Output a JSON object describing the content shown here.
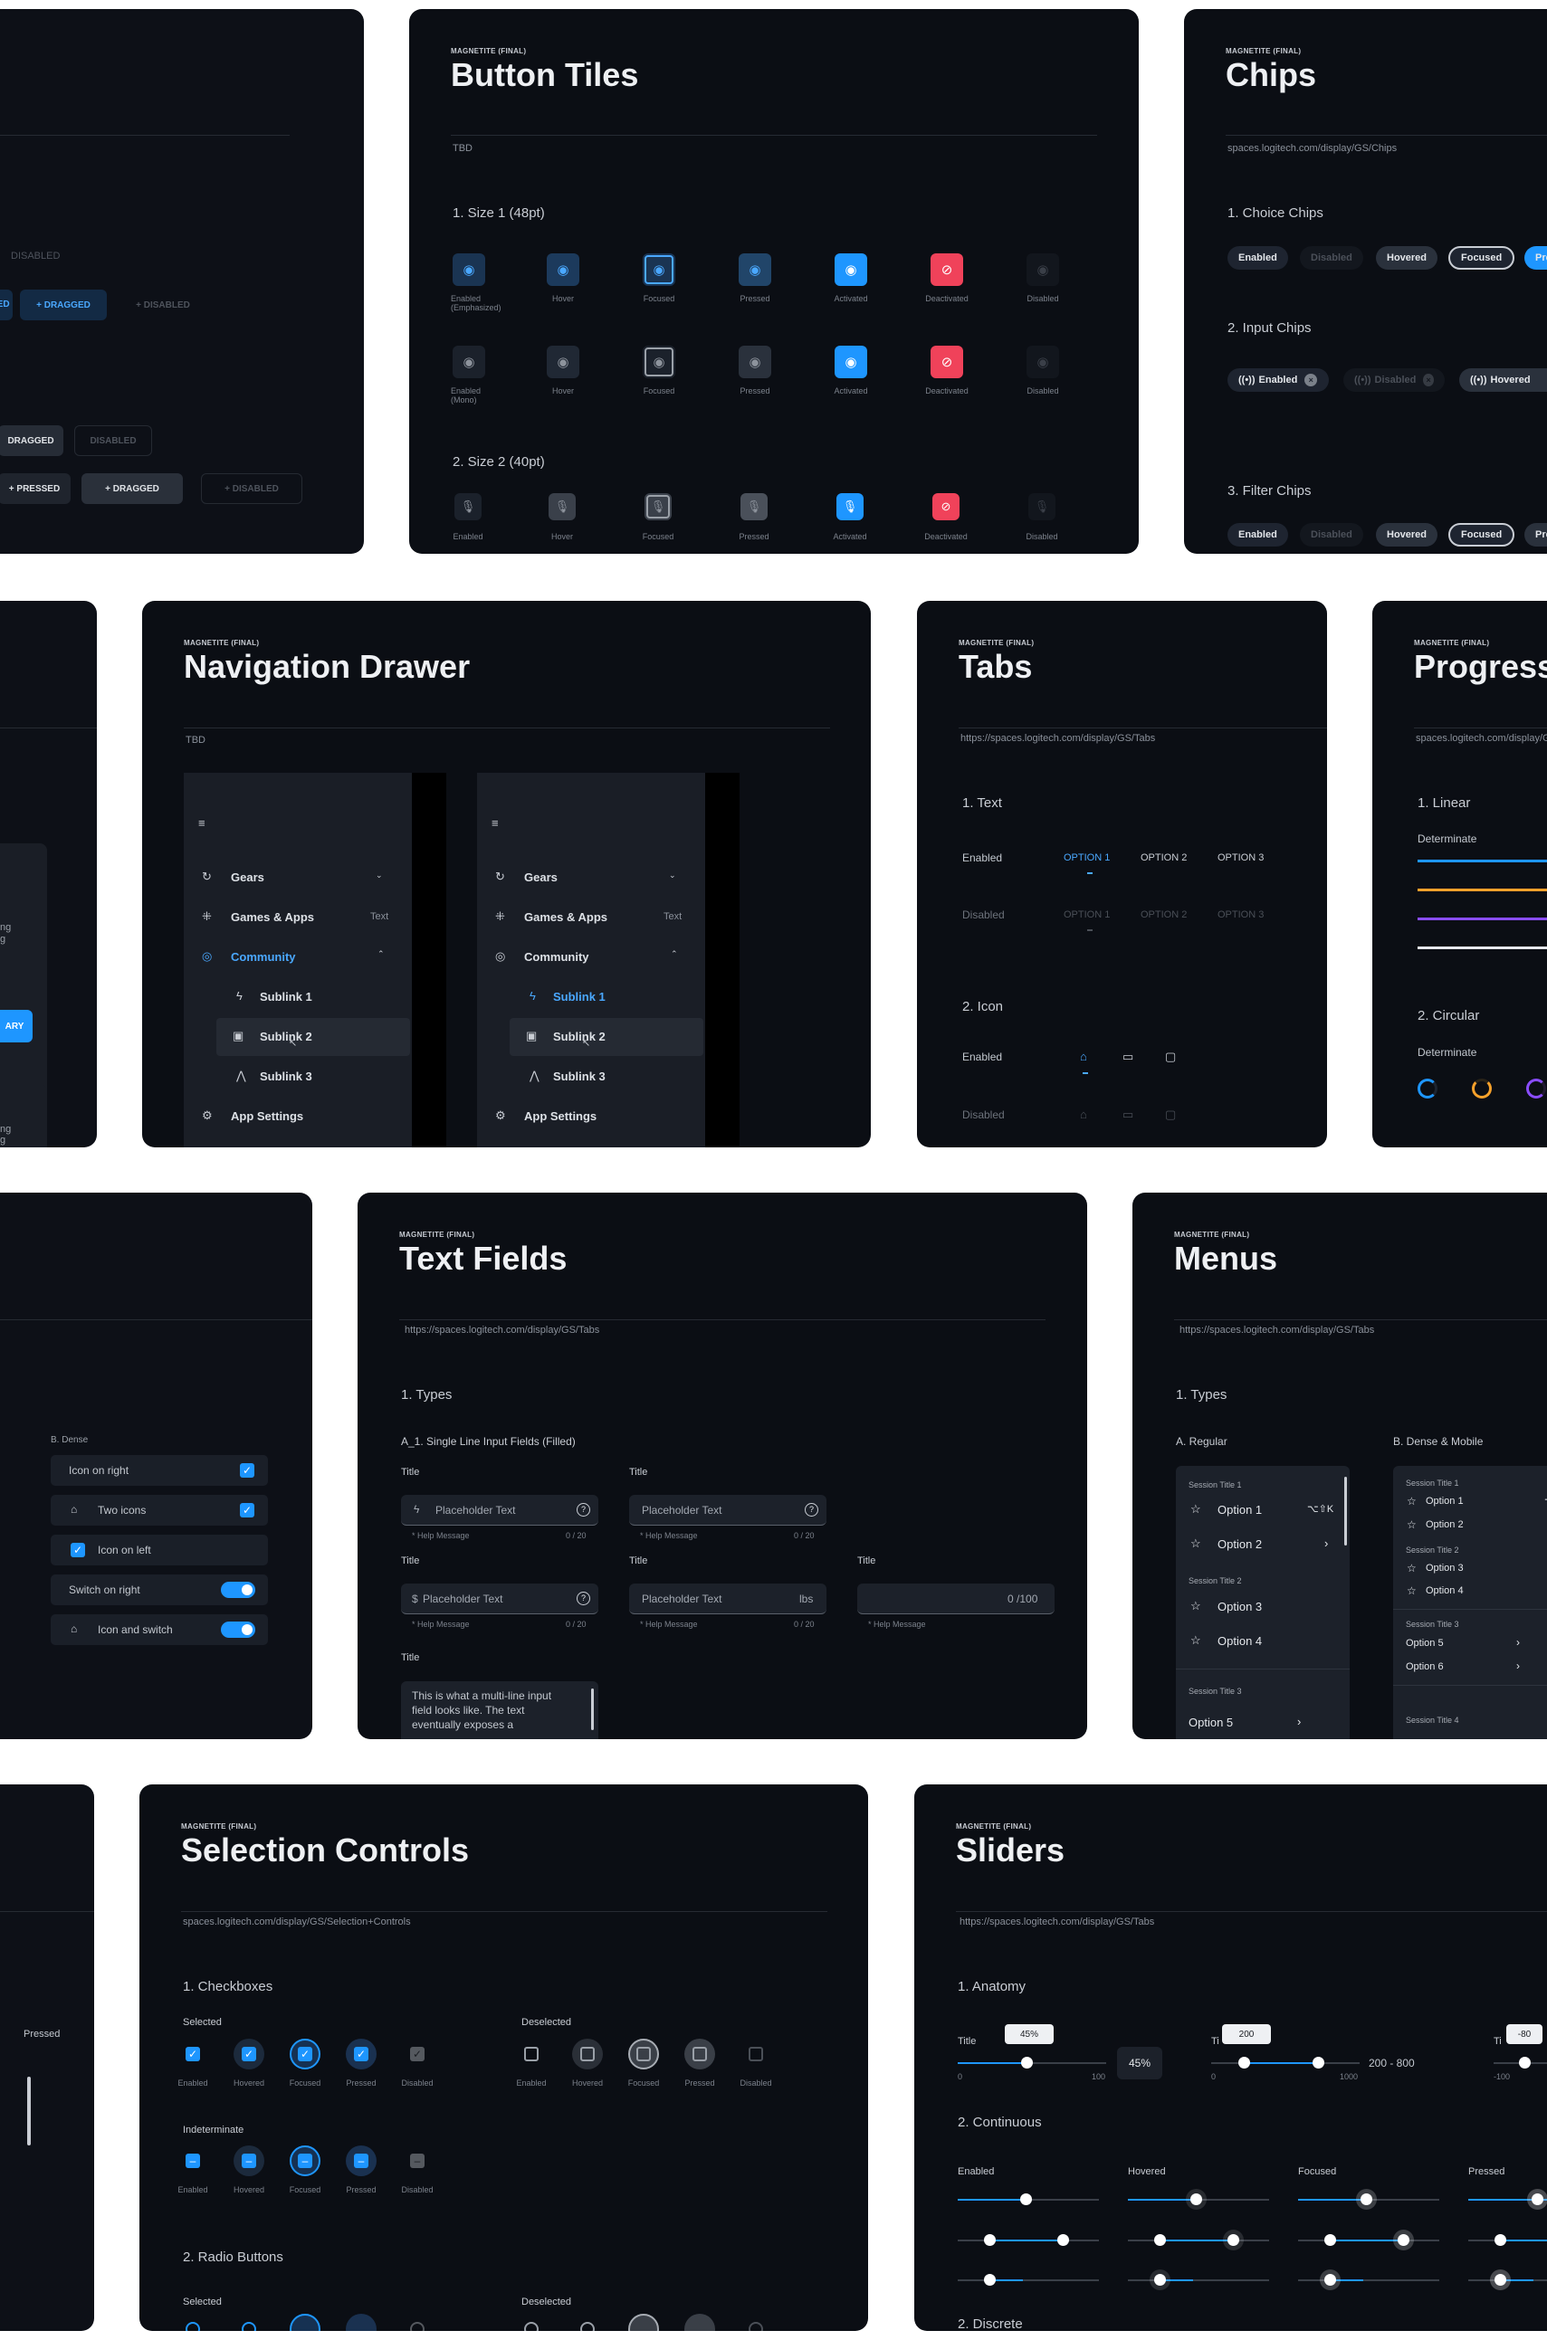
{
  "overline": "MAGNETITE (FINAL)",
  "c1": {
    "disabled": "DISABLED",
    "dragged1": "+ DRAGGED",
    "disabled2": "+ DISABLED",
    "sed": "SED",
    "dragged": "DRAGGED",
    "disabled3": "DISABLED",
    "pressed": "+ PRESSED",
    "dragged2": "+ DRAGGED",
    "disabled4": "+ DISABLED"
  },
  "btn": {
    "title": "Button Tiles",
    "subtitle": "TBD",
    "size1": "1. Size 1 (48pt)",
    "size2": "2. Size 2 (40pt)",
    "row1": [
      "Enabled (Emphasized)",
      "Hover",
      "Focused",
      "Pressed",
      "Activated",
      "Deactivated",
      "Disabled"
    ],
    "row2": [
      "Enabled (Mono)",
      "Hover",
      "Focused",
      "Pressed",
      "Activated",
      "Deactivated",
      "Disabled"
    ],
    "row3": [
      "Enabled",
      "Hover",
      "Focused",
      "Pressed",
      "Activated",
      "Deactivated",
      "Disabled"
    ]
  },
  "chips": {
    "title": "Chips",
    "subtitle": "spaces.logitech.com/display/GS/Chips",
    "choice": "1. Choice Chips",
    "input": "2. Input Chips",
    "filter": "3. Filter Chips",
    "choice_items": [
      "Enabled",
      "Disabled",
      "Hovered",
      "Focused",
      "Pre"
    ],
    "input_items": [
      "Enabled",
      "Disabled",
      "Hovered"
    ],
    "filter_items": [
      "Enabled",
      "Disabled",
      "Hovered",
      "Focused",
      "Pre"
    ]
  },
  "c4": {
    "ng": "ng",
    "g": "g",
    "ary": "ARY",
    "ng2": "ng",
    "gg": "g"
  },
  "nav": {
    "title": "Navigation Drawer",
    "subtitle": "TBD",
    "items": [
      "Gears",
      "Games & Apps",
      "Community",
      "Sublink 1",
      "Sublink 2",
      "Sublink 3",
      "App Settings"
    ],
    "text_label": "Text"
  },
  "tabs": {
    "title": "Tabs",
    "subtitle": "https://spaces.logitech.com/display/GS/Tabs",
    "text": "1. Text",
    "icon": "2. Icon",
    "enabled": "Enabled",
    "disabled": "Disabled",
    "options": [
      "OPTION 1",
      "OPTION 2",
      "OPTION 3"
    ]
  },
  "progress": {
    "title": "Progress",
    "subtitle": "spaces.logitech.com/display/GS/P",
    "linear": "1. Linear",
    "determinate": "Determinate",
    "circular": "2. Circular",
    "determinate2": "Determinate"
  },
  "dense": {
    "label": "B. Dense",
    "items": [
      "Icon on right",
      "Two icons",
      "Icon on left",
      "Switch on right",
      "Icon and switch"
    ]
  },
  "tf": {
    "title": "Text Fields",
    "subtitle": "https://spaces.logitech.com/display/GS/Tabs",
    "types": "1. Types",
    "single": "A_1. Single Line Input Fields (Filled)",
    "field_title": "Title",
    "placeholder": "Placeholder Text",
    "help": "* Help Message",
    "count": "0 / 20",
    "dollar": "$",
    "unit": "lbs",
    "count100": "0 /100",
    "multiline": "This is what a multi-line input field looks like. The text eventually exposes a"
  },
  "menus": {
    "title": "Menus",
    "subtitle": "https://spaces.logitech.com/display/GS/Tabs",
    "types": "1. Types",
    "regular": "A. Regular",
    "dense": "B. Dense & Mobile",
    "s1": "Session Title 1",
    "s2": "Session Title 2",
    "s3": "Session Title 3",
    "s4": "Session Title 4",
    "options": [
      "Option 1",
      "Option 2",
      "Option 3",
      "Option 4",
      "Option 5",
      "Option 6"
    ],
    "shortcut": "⌥⇧K",
    "shortcut2": "⌥⇧"
  },
  "c13": {
    "pressed": "Pressed"
  },
  "sel": {
    "title": "Selection Controls",
    "subtitle": "spaces.logitech.com/display/GS/Selection+Controls",
    "checkboxes": "1. Checkboxes",
    "selected": "Selected",
    "deselected": "Deselected",
    "indeterminate": "Indeterminate",
    "radio": "2. Radio Buttons",
    "selected2": "Selected",
    "deselected2": "Deselected",
    "states": [
      "Enabled",
      "Hovered",
      "Focused",
      "Pressed",
      "Disabled"
    ]
  },
  "sliders": {
    "title": "Sliders",
    "subtitle": "https://spaces.logitech.com/display/GS/Tabs",
    "anatomy": "1. Anatomy",
    "field_title": "Title",
    "ti": "Ti",
    "tip1": "45%",
    "min0": "0",
    "max100": "100",
    "value45": "45%",
    "tip2": "200",
    "max1000": "1000",
    "range": "200 - 800",
    "tip3": "-80",
    "min100": "-100",
    "continuous": "2. Continuous",
    "states": [
      "Enabled",
      "Hovered",
      "Focused",
      "Pressed"
    ],
    "discrete": "2. Discrete"
  }
}
